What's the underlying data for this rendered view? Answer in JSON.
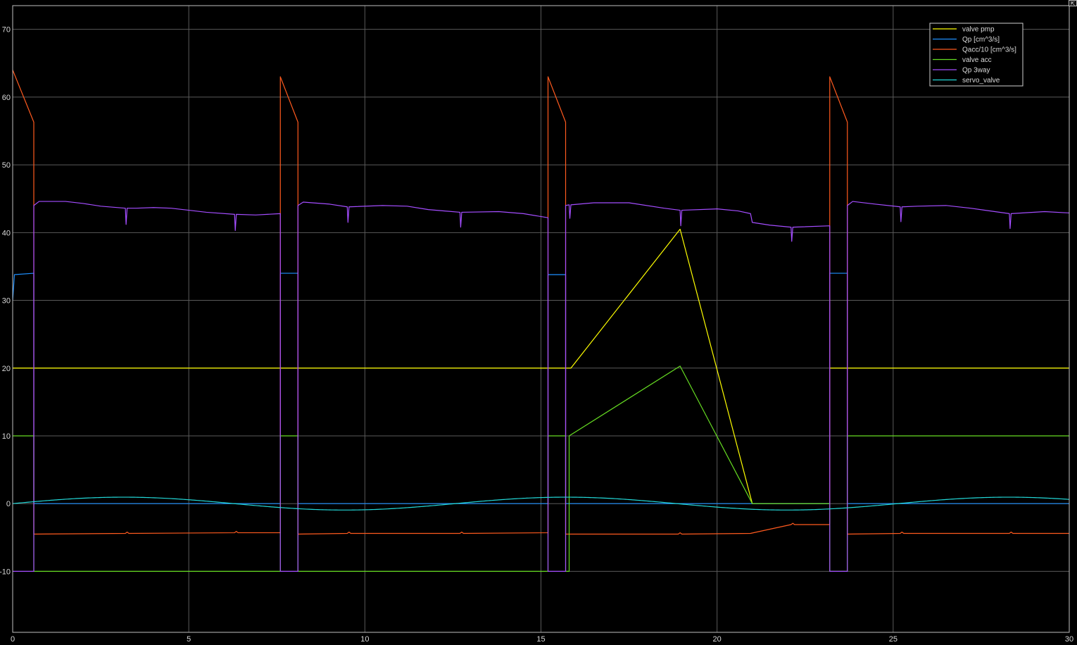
{
  "window": {
    "corner_icon": "undock-icon"
  },
  "chart_data": {
    "type": "line",
    "title": "",
    "xlabel": "",
    "ylabel": "",
    "xlim": [
      0,
      30
    ],
    "ylim": [
      -19,
      73.5
    ],
    "x_ticks": [
      0,
      5,
      10,
      15,
      20,
      25,
      30
    ],
    "y_ticks": [
      -10,
      0,
      10,
      20,
      30,
      40,
      50,
      60,
      70
    ],
    "grid": true,
    "legend_position": "top-right",
    "background": "#000000",
    "grid_color": "#5a5a5a",
    "axis_color": "#bfbfbf",
    "series": [
      {
        "name": "valve pmp",
        "color": "#ffff00",
        "points": [
          [
            0,
            20
          ],
          [
            15.8,
            20
          ],
          [
            15.85,
            20
          ],
          [
            18.95,
            40.5
          ],
          [
            21,
            0
          ],
          [
            23.2,
            0
          ],
          [
            23.2,
            20
          ],
          [
            30,
            20
          ]
        ]
      },
      {
        "name": "Qp [cm^3/s]",
        "color": "#1e90ff",
        "points": [
          [
            0,
            30
          ],
          [
            0.05,
            33.8
          ],
          [
            0.6,
            34
          ],
          [
            0.6,
            0
          ],
          [
            7.6,
            0
          ],
          [
            7.6,
            34
          ],
          [
            8.1,
            34
          ],
          [
            8.1,
            0
          ],
          [
            15.2,
            0
          ],
          [
            15.2,
            33.8
          ],
          [
            15.7,
            33.8
          ],
          [
            15.7,
            0
          ],
          [
            23.2,
            0
          ],
          [
            23.2,
            34
          ],
          [
            23.7,
            34
          ],
          [
            23.7,
            0
          ],
          [
            30,
            0
          ]
        ]
      },
      {
        "name": "Qacc/10 [cm^3/s]",
        "color": "#ff5a1e",
        "points": [
          [
            0,
            64
          ],
          [
            0.6,
            56.3
          ],
          [
            0.6,
            -4.5
          ],
          [
            3.2,
            -4.4
          ],
          [
            3.25,
            -4.2
          ],
          [
            3.3,
            -4.4
          ],
          [
            6.3,
            -4.3
          ],
          [
            6.35,
            -4.1
          ],
          [
            6.4,
            -4.3
          ],
          [
            7.6,
            -4.3
          ],
          [
            7.6,
            63
          ],
          [
            8.1,
            56.3
          ],
          [
            8.1,
            -4.5
          ],
          [
            9.5,
            -4.4
          ],
          [
            9.55,
            -4.2
          ],
          [
            9.6,
            -4.4
          ],
          [
            12.7,
            -4.4
          ],
          [
            12.75,
            -4.2
          ],
          [
            12.8,
            -4.4
          ],
          [
            15.2,
            -4.3
          ],
          [
            15.2,
            63
          ],
          [
            15.7,
            56.3
          ],
          [
            15.7,
            -4.5
          ],
          [
            18.9,
            -4.5
          ],
          [
            18.95,
            -4.3
          ],
          [
            19,
            -4.5
          ],
          [
            20.95,
            -4.4
          ],
          [
            22.1,
            -3.1
          ],
          [
            22.15,
            -2.9
          ],
          [
            22.2,
            -3.1
          ],
          [
            23.2,
            -3.1
          ],
          [
            23.2,
            63
          ],
          [
            23.7,
            56.3
          ],
          [
            23.7,
            -4.5
          ],
          [
            25.2,
            -4.4
          ],
          [
            25.25,
            -4.2
          ],
          [
            25.3,
            -4.4
          ],
          [
            28.3,
            -4.4
          ],
          [
            28.35,
            -4.2
          ],
          [
            28.4,
            -4.4
          ],
          [
            30,
            -4.4
          ]
        ]
      },
      {
        "name": "valve acc",
        "color": "#66dd22",
        "points": [
          [
            0,
            10
          ],
          [
            0.6,
            10
          ],
          [
            0.6,
            -10
          ],
          [
            7.6,
            -10
          ],
          [
            7.6,
            10
          ],
          [
            8.1,
            10
          ],
          [
            8.1,
            -10
          ],
          [
            15.2,
            -10
          ],
          [
            15.2,
            10
          ],
          [
            15.7,
            10
          ],
          [
            15.7,
            -10
          ],
          [
            15.8,
            -10
          ],
          [
            15.8,
            10
          ],
          [
            18.95,
            20.3
          ],
          [
            21,
            0
          ],
          [
            23.2,
            0
          ],
          [
            23.2,
            -10
          ],
          [
            23.7,
            -10
          ],
          [
            23.7,
            10
          ],
          [
            30,
            10
          ]
        ]
      },
      {
        "name": "Qp 3way",
        "color": "#a44dff",
        "points": [
          [
            0,
            -10
          ],
          [
            0.6,
            -10
          ],
          [
            0.6,
            44
          ],
          [
            0.75,
            44.6
          ],
          [
            1.5,
            44.6
          ],
          [
            2,
            44.3
          ],
          [
            2.5,
            43.9
          ],
          [
            3.2,
            43.6
          ],
          [
            3.22,
            41.2
          ],
          [
            3.25,
            43.6
          ],
          [
            3.5,
            43.6
          ],
          [
            4,
            43.7
          ],
          [
            4.5,
            43.6
          ],
          [
            5,
            43.3
          ],
          [
            5.5,
            43
          ],
          [
            6.3,
            42.7
          ],
          [
            6.32,
            40.3
          ],
          [
            6.35,
            42.7
          ],
          [
            6.9,
            42.6
          ],
          [
            7.6,
            42.8
          ],
          [
            7.6,
            -10
          ],
          [
            8.1,
            -10
          ],
          [
            8.1,
            44
          ],
          [
            8.25,
            44.5
          ],
          [
            9,
            44.2
          ],
          [
            9.5,
            43.8
          ],
          [
            9.52,
            41.5
          ],
          [
            9.55,
            43.8
          ],
          [
            10.5,
            44
          ],
          [
            11.2,
            43.9
          ],
          [
            11.8,
            43.4
          ],
          [
            12.7,
            43
          ],
          [
            12.72,
            40.8
          ],
          [
            12.75,
            43
          ],
          [
            13.8,
            43.1
          ],
          [
            14.5,
            42.8
          ],
          [
            15.2,
            42.2
          ],
          [
            15.2,
            -10
          ],
          [
            15.7,
            -10
          ],
          [
            15.7,
            44
          ],
          [
            15.8,
            44.1
          ],
          [
            15.82,
            42.1
          ],
          [
            15.85,
            44.1
          ],
          [
            16.5,
            44.4
          ],
          [
            17.5,
            44.4
          ],
          [
            18.5,
            43.6
          ],
          [
            18.95,
            43.3
          ],
          [
            18.97,
            41
          ],
          [
            19,
            43.3
          ],
          [
            20,
            43.5
          ],
          [
            20.6,
            43.2
          ],
          [
            20.95,
            42.8
          ],
          [
            21,
            41.5
          ],
          [
            21.5,
            41.1
          ],
          [
            22.1,
            40.8
          ],
          [
            22.12,
            38.7
          ],
          [
            22.15,
            40.8
          ],
          [
            23.2,
            41
          ],
          [
            23.2,
            -10
          ],
          [
            23.7,
            -10
          ],
          [
            23.7,
            44
          ],
          [
            23.85,
            44.6
          ],
          [
            24.5,
            44.2
          ],
          [
            25.2,
            43.8
          ],
          [
            25.22,
            41.6
          ],
          [
            25.25,
            43.8
          ],
          [
            25.7,
            43.9
          ],
          [
            26.5,
            44
          ],
          [
            27.2,
            43.6
          ],
          [
            28.3,
            42.8
          ],
          [
            28.32,
            40.6
          ],
          [
            28.35,
            42.8
          ],
          [
            29.3,
            43.1
          ],
          [
            30,
            42.9
          ]
        ]
      },
      {
        "name": "servo_valve",
        "color": "#22d8d8",
        "sinusoid": {
          "amplitude": 0.95,
          "period": 12.566,
          "phase": 0,
          "x_from": 0,
          "x_to": 30,
          "step": 0.05
        }
      }
    ]
  }
}
